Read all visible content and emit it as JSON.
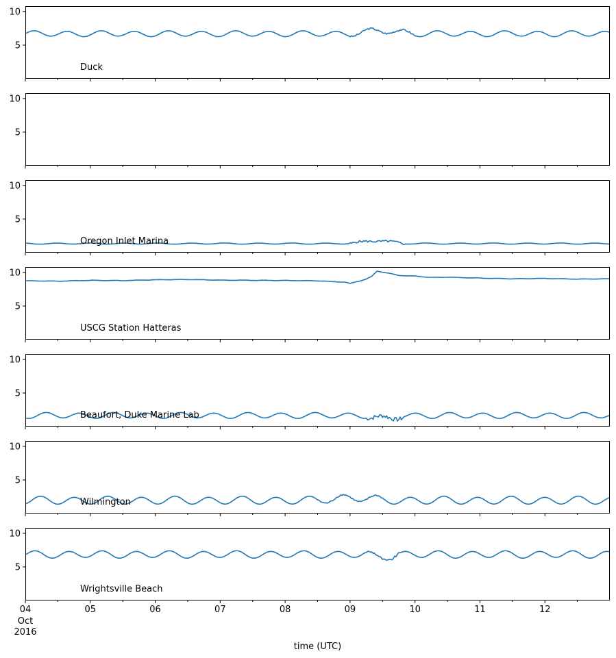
{
  "chart_data": {
    "type": "line",
    "xlabel": "time (UTC)",
    "x_range": [
      "2016-10-04T00:00",
      "2016-10-13T00:00"
    ],
    "x_ticks": [
      {
        "date": "2016-10-04",
        "label": "04",
        "extra": [
          "Oct",
          "2016"
        ]
      },
      {
        "date": "2016-10-05",
        "label": "05"
      },
      {
        "date": "2016-10-06",
        "label": "06"
      },
      {
        "date": "2016-10-07",
        "label": "07"
      },
      {
        "date": "2016-10-08",
        "label": "08"
      },
      {
        "date": "2016-10-09",
        "label": "09"
      },
      {
        "date": "2016-10-10",
        "label": "10"
      },
      {
        "date": "2016-10-11",
        "label": "11"
      },
      {
        "date": "2016-10-12",
        "label": "12"
      }
    ],
    "ylim": [
      0,
      10.8
    ],
    "y_ticks": [
      5,
      10
    ],
    "line_color": "#1f77b4",
    "panels": [
      {
        "name": "Duck",
        "kind": "tidal",
        "base": 6.7,
        "amp": 0.4,
        "drift": 0,
        "event": {
          "start": "2016-10-09T00:00",
          "end": "2016-10-10T00:00",
          "shift": 0.4,
          "noise": 0.12
        }
      },
      {
        "name": "",
        "kind": "none"
      },
      {
        "name": "Oregon Inlet Marina",
        "kind": "tidal",
        "base": 1.35,
        "amp": 0.08,
        "drift": 0,
        "event": {
          "start": "2016-10-09T00:00",
          "end": "2016-10-09T20:00",
          "shift": 0.4,
          "noise": 0.15
        }
      },
      {
        "name": "USCG Station Hatteras",
        "kind": "steady",
        "points": [
          [
            "2016-10-04T00:00",
            8.75
          ],
          [
            "2016-10-04T12:00",
            8.7
          ],
          [
            "2016-10-05T00:00",
            8.82
          ],
          [
            "2016-10-05T12:00",
            8.78
          ],
          [
            "2016-10-06T00:00",
            8.9
          ],
          [
            "2016-10-06T12:00",
            8.95
          ],
          [
            "2016-10-07T00:00",
            8.85
          ],
          [
            "2016-10-07T12:00",
            8.82
          ],
          [
            "2016-10-08T00:00",
            8.8
          ],
          [
            "2016-10-08T12:00",
            8.75
          ],
          [
            "2016-10-08T22:00",
            8.55
          ],
          [
            "2016-10-09T00:00",
            8.35
          ],
          [
            "2016-10-09T06:00",
            9.0
          ],
          [
            "2016-10-09T08:00",
            9.4
          ],
          [
            "2016-10-09T10:00",
            10.2
          ],
          [
            "2016-10-09T14:00",
            9.9
          ],
          [
            "2016-10-09T18:00",
            9.55
          ],
          [
            "2016-10-10T00:00",
            9.45
          ],
          [
            "2016-10-10T06:00",
            9.25
          ],
          [
            "2016-10-10T12:00",
            9.3
          ],
          [
            "2016-10-11T00:00",
            9.15
          ],
          [
            "2016-10-11T12:00",
            9.05
          ],
          [
            "2016-10-12T00:00",
            9.1
          ],
          [
            "2016-10-12T12:00",
            9.0
          ],
          [
            "2016-10-13T00:00",
            9.05
          ]
        ]
      },
      {
        "name": "Beaufort, Duke Marine Lab",
        "kind": "tidal",
        "base": 1.65,
        "amp": 0.4,
        "drift": 0,
        "event": {
          "start": "2016-10-09T06:00",
          "end": "2016-10-09T20:00",
          "shift": -0.5,
          "noise": 0.3
        }
      },
      {
        "name": "Wilmington",
        "kind": "tidal",
        "base": 1.95,
        "amp": 0.55,
        "drift": 0,
        "event": {
          "start": "2016-10-08T12:00",
          "end": "2016-10-09T12:00",
          "shift": 0.4,
          "noise": 0.1
        }
      },
      {
        "name": "Wrightsville Beach",
        "kind": "tidal",
        "base": 6.85,
        "amp": 0.5,
        "drift": 0,
        "event": {
          "start": "2016-10-09T06:00",
          "end": "2016-10-09T18:00",
          "shift": -0.4,
          "noise": 0.15
        }
      }
    ]
  }
}
